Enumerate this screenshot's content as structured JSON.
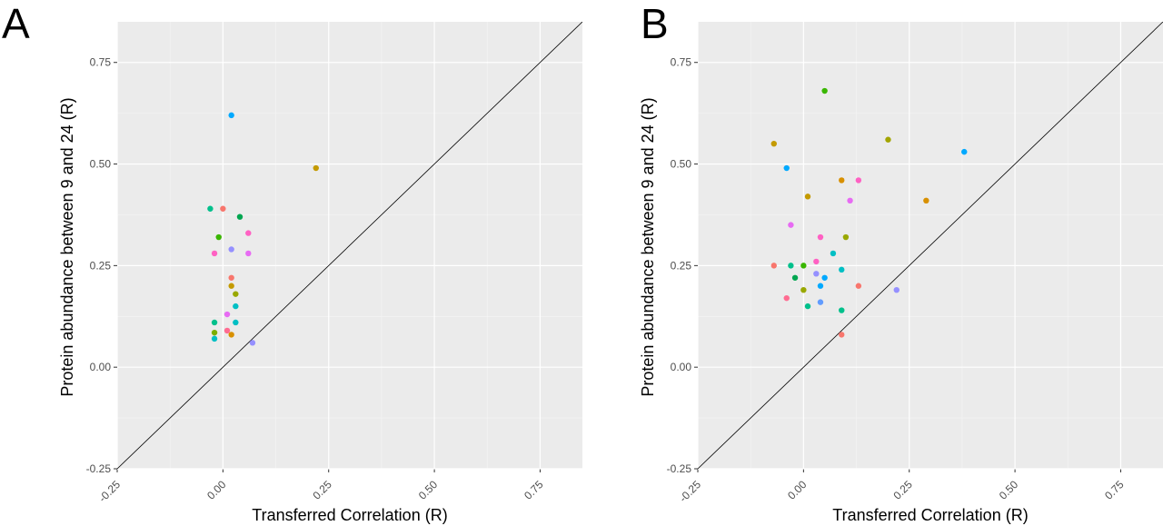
{
  "chart_data": [
    {
      "panel_label": "A",
      "type": "scatter",
      "xlabel": "Transferred Correlation (R)",
      "ylabel": "Protein abundance between 9 and 24 (R)",
      "xlim": [
        -0.25,
        0.85
      ],
      "ylim": [
        -0.25,
        0.85
      ],
      "x_ticks": [
        "-0.25",
        "0.00",
        "0.25",
        "0.50",
        "0.75"
      ],
      "y_ticks": [
        "-0.25",
        "0.00",
        "0.25",
        "0.50",
        "0.75"
      ],
      "background": "#ebebeb",
      "grid": true,
      "reference_line": "y = x",
      "points": [
        {
          "x": 0.02,
          "y": 0.62,
          "color": "#00a9ff"
        },
        {
          "x": 0.22,
          "y": 0.49,
          "color": "#c49a00"
        },
        {
          "x": -0.03,
          "y": 0.39,
          "color": "#00c08b"
        },
        {
          "x": 0.0,
          "y": 0.39,
          "color": "#f8766d"
        },
        {
          "x": 0.04,
          "y": 0.37,
          "color": "#00a650"
        },
        {
          "x": -0.01,
          "y": 0.32,
          "color": "#39b600"
        },
        {
          "x": 0.06,
          "y": 0.33,
          "color": "#ff61c3"
        },
        {
          "x": 0.02,
          "y": 0.29,
          "color": "#9590ff"
        },
        {
          "x": -0.02,
          "y": 0.28,
          "color": "#ff61c3"
        },
        {
          "x": 0.06,
          "y": 0.28,
          "color": "#e76bf3"
        },
        {
          "x": 0.02,
          "y": 0.22,
          "color": "#f8766d"
        },
        {
          "x": 0.02,
          "y": 0.2,
          "color": "#c49a00"
        },
        {
          "x": 0.03,
          "y": 0.18,
          "color": "#99a800"
        },
        {
          "x": 0.03,
          "y": 0.15,
          "color": "#00bfc4"
        },
        {
          "x": 0.01,
          "y": 0.13,
          "color": "#e76bf3"
        },
        {
          "x": 0.03,
          "y": 0.11,
          "color": "#00bfc4"
        },
        {
          "x": -0.02,
          "y": 0.11,
          "color": "#00c08b"
        },
        {
          "x": 0.01,
          "y": 0.09,
          "color": "#ff6c91"
        },
        {
          "x": 0.02,
          "y": 0.08,
          "color": "#d89000"
        },
        {
          "x": -0.02,
          "y": 0.085,
          "color": "#7cae00"
        },
        {
          "x": -0.02,
          "y": 0.07,
          "color": "#00bfc4"
        },
        {
          "x": 0.07,
          "y": 0.06,
          "color": "#9590ff"
        }
      ]
    },
    {
      "panel_label": "B",
      "type": "scatter",
      "xlabel": "Transferred Correlation (R)",
      "ylabel": "Protein abundance between 9 and 24 (R)",
      "xlim": [
        -0.25,
        0.85
      ],
      "ylim": [
        -0.25,
        0.85
      ],
      "x_ticks": [
        "-0.25",
        "0.00",
        "0.25",
        "0.50",
        "0.75"
      ],
      "y_ticks": [
        "-0.25",
        "0.00",
        "0.25",
        "0.50",
        "0.75"
      ],
      "background": "#ebebeb",
      "grid": true,
      "reference_line": "y = x",
      "points": [
        {
          "x": 0.05,
          "y": 0.68,
          "color": "#39b600"
        },
        {
          "x": -0.07,
          "y": 0.55,
          "color": "#c49a00"
        },
        {
          "x": 0.2,
          "y": 0.56,
          "color": "#a3a500"
        },
        {
          "x": 0.38,
          "y": 0.53,
          "color": "#00a9ff"
        },
        {
          "x": -0.04,
          "y": 0.49,
          "color": "#00a9ff"
        },
        {
          "x": 0.09,
          "y": 0.46,
          "color": "#d89000"
        },
        {
          "x": 0.13,
          "y": 0.46,
          "color": "#ff61c3"
        },
        {
          "x": 0.01,
          "y": 0.42,
          "color": "#c49a00"
        },
        {
          "x": 0.11,
          "y": 0.41,
          "color": "#e76bf3"
        },
        {
          "x": 0.29,
          "y": 0.41,
          "color": "#d89000"
        },
        {
          "x": -0.03,
          "y": 0.35,
          "color": "#e76bf3"
        },
        {
          "x": 0.04,
          "y": 0.32,
          "color": "#ff61c3"
        },
        {
          "x": 0.1,
          "y": 0.32,
          "color": "#99a800"
        },
        {
          "x": 0.07,
          "y": 0.28,
          "color": "#00bfc4"
        },
        {
          "x": -0.07,
          "y": 0.25,
          "color": "#f8766d"
        },
        {
          "x": -0.03,
          "y": 0.25,
          "color": "#00c08b"
        },
        {
          "x": 0.0,
          "y": 0.25,
          "color": "#39b600"
        },
        {
          "x": 0.03,
          "y": 0.26,
          "color": "#ff61c3"
        },
        {
          "x": -0.02,
          "y": 0.22,
          "color": "#00a650"
        },
        {
          "x": 0.03,
          "y": 0.23,
          "color": "#9590ff"
        },
        {
          "x": 0.05,
          "y": 0.22,
          "color": "#00a9ff"
        },
        {
          "x": 0.09,
          "y": 0.24,
          "color": "#00bfc4"
        },
        {
          "x": 0.0,
          "y": 0.19,
          "color": "#99a800"
        },
        {
          "x": 0.04,
          "y": 0.2,
          "color": "#00a9ff"
        },
        {
          "x": 0.13,
          "y": 0.2,
          "color": "#f8766d"
        },
        {
          "x": -0.04,
          "y": 0.17,
          "color": "#ff6c91"
        },
        {
          "x": 0.01,
          "y": 0.15,
          "color": "#00c08b"
        },
        {
          "x": 0.04,
          "y": 0.16,
          "color": "#619cff"
        },
        {
          "x": 0.09,
          "y": 0.14,
          "color": "#00c08b"
        },
        {
          "x": 0.22,
          "y": 0.19,
          "color": "#9590ff"
        },
        {
          "x": 0.09,
          "y": 0.08,
          "color": "#f8766d"
        }
      ]
    }
  ]
}
